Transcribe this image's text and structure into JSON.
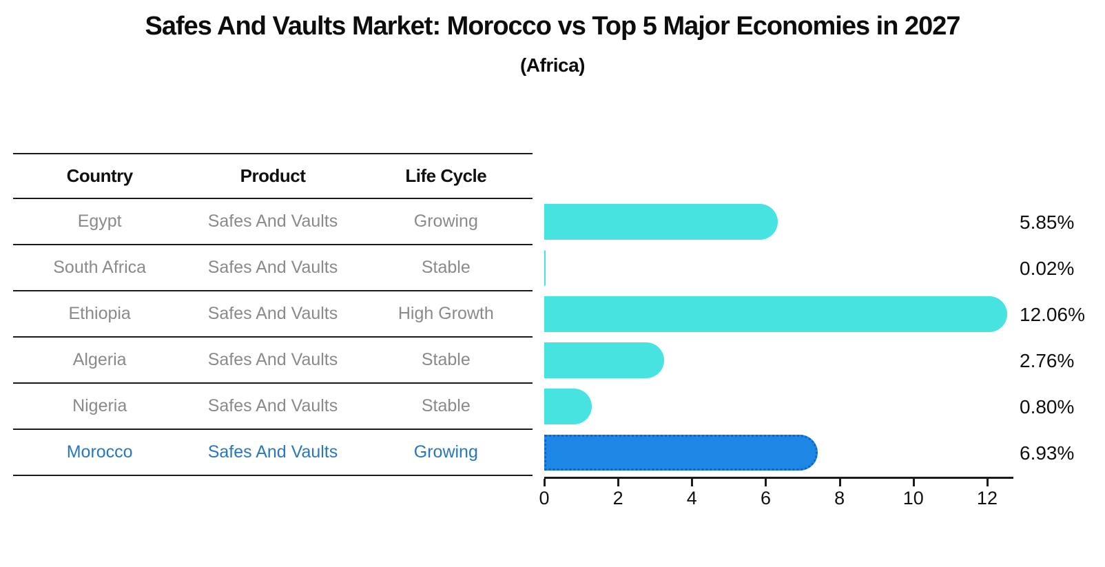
{
  "title": "Safes And Vaults Market: Morocco vs Top 5 Major Economies in 2027",
  "subtitle": "(Africa)",
  "table": {
    "headers": [
      "Country",
      "Product",
      "Life Cycle"
    ],
    "rows": [
      {
        "country": "Egypt",
        "product": "Safes And Vaults",
        "life_cycle": "Growing",
        "highlight": false
      },
      {
        "country": "South Africa",
        "product": "Safes And Vaults",
        "life_cycle": "Stable",
        "highlight": false
      },
      {
        "country": "Ethiopia",
        "product": "Safes And Vaults",
        "life_cycle": "High Growth",
        "highlight": false
      },
      {
        "country": "Algeria",
        "product": "Safes And Vaults",
        "life_cycle": "Stable",
        "highlight": false
      },
      {
        "country": "Nigeria",
        "product": "Safes And Vaults",
        "life_cycle": "Stable",
        "highlight": false
      },
      {
        "country": "Morocco",
        "product": "Safes And Vaults",
        "life_cycle": "Growing",
        "highlight": true
      }
    ]
  },
  "chart_data": {
    "type": "bar",
    "orientation": "horizontal",
    "title": "Safes And Vaults Market: Morocco vs Top 5 Major Economies in 2027 (Africa)",
    "categories": [
      "Egypt",
      "South Africa",
      "Ethiopia",
      "Algeria",
      "Nigeria",
      "Morocco"
    ],
    "values": [
      5.85,
      0.02,
      12.06,
      2.76,
      0.8,
      6.93
    ],
    "value_labels": [
      "5.85%",
      "0.02%",
      "12.06%",
      "2.76%",
      "0.80%",
      "6.93%"
    ],
    "xlabel": "",
    "ylabel": "",
    "xticks": [
      0,
      2,
      4,
      6,
      8,
      10,
      12
    ],
    "xlim": [
      0,
      12.7
    ],
    "grid": false,
    "legend": "none",
    "bar_color": "#46e3e1",
    "highlight_color": "#1e87e5",
    "highlight_index": 5,
    "highlight_border_style": "dotted",
    "value_label_position": "right-of-plot"
  }
}
